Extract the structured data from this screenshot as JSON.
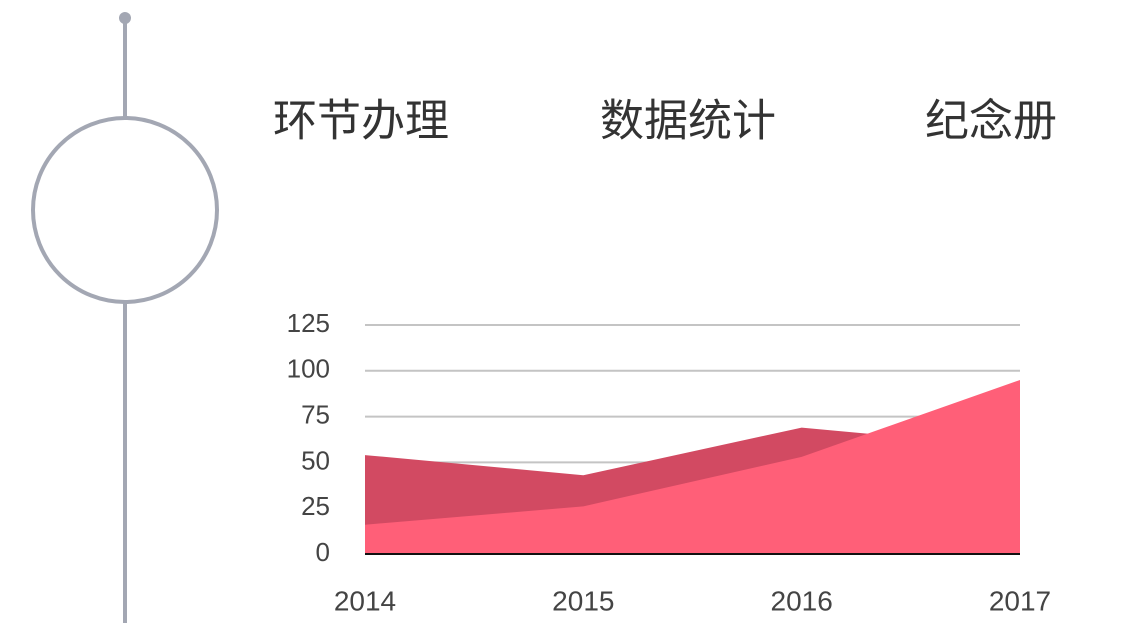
{
  "header": {
    "items": [
      "环节办理",
      "数据统计",
      "纪念册"
    ]
  },
  "chart_data": {
    "type": "area",
    "categories": [
      "2014",
      "2015",
      "2016",
      "2017"
    ],
    "series": [
      {
        "color": "#d24a62",
        "values": [
          54,
          43,
          69,
          58
        ]
      },
      {
        "color": "#ff5f78",
        "values": [
          16,
          26,
          53,
          95
        ]
      }
    ],
    "ylim": [
      0,
      125
    ],
    "yticks": [
      0,
      25,
      50,
      75,
      100,
      125
    ],
    "grid": true
  }
}
